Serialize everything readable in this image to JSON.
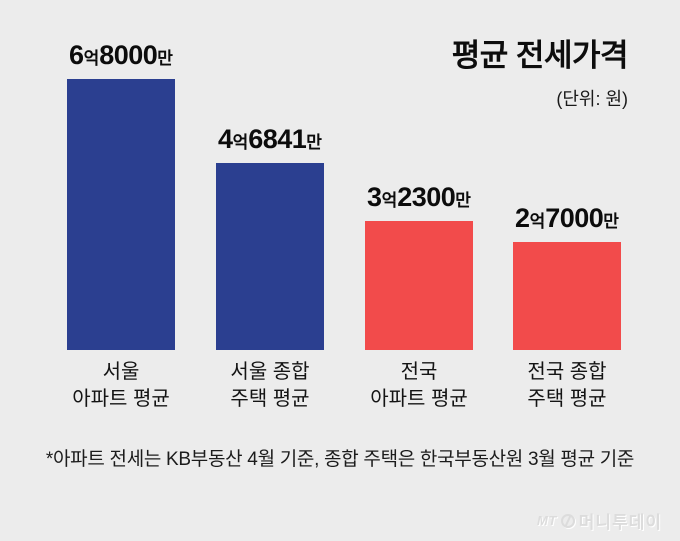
{
  "title": "평균 전세가격",
  "subtitle": "(단위: 원)",
  "footnote": "*아파트 전세는 KB부동산 4월 기준, 종합 주택은 한국부동산원 3월 평균 기준",
  "logo": {
    "mt": "MT",
    "brand": "머니투데이"
  },
  "colors": {
    "seoul_bar": "#2b3f90",
    "national_bar": "#f24b4b",
    "background": "#ececec",
    "text": "#111111",
    "watermark": "#dcdcdc"
  },
  "chart_data": {
    "type": "bar",
    "title": "평균 전세가격",
    "unit_note": "(단위: 원)",
    "ylabel": "",
    "xlabel": "",
    "ylim": [
      0,
      680000000
    ],
    "grid": false,
    "legend": "none",
    "categories": [
      [
        "서울",
        "아파트 평균"
      ],
      [
        "서울 종합",
        "주택 평균"
      ],
      [
        "전국",
        "아파트 평균"
      ],
      [
        "전국 종합",
        "주택 평균"
      ]
    ],
    "values": [
      680000000,
      468410000,
      323000000,
      270000000
    ],
    "value_labels": [
      [
        {
          "t": "6",
          "big": true
        },
        {
          "t": "억",
          "big": false
        },
        {
          "t": "8000",
          "big": true
        },
        {
          "t": "만",
          "big": false
        }
      ],
      [
        {
          "t": "4",
          "big": true
        },
        {
          "t": "억",
          "big": false
        },
        {
          "t": "6841",
          "big": true
        },
        {
          "t": "만",
          "big": false
        }
      ],
      [
        {
          "t": "3",
          "big": true
        },
        {
          "t": "억",
          "big": false
        },
        {
          "t": "2300",
          "big": true
        },
        {
          "t": "만",
          "big": false
        }
      ],
      [
        {
          "t": "2",
          "big": true
        },
        {
          "t": "억",
          "big": false
        },
        {
          "t": "7000",
          "big": true
        },
        {
          "t": "만",
          "big": false
        }
      ]
    ],
    "bar_colors": [
      "#2b3f90",
      "#2b3f90",
      "#f24b4b",
      "#f24b4b"
    ]
  }
}
